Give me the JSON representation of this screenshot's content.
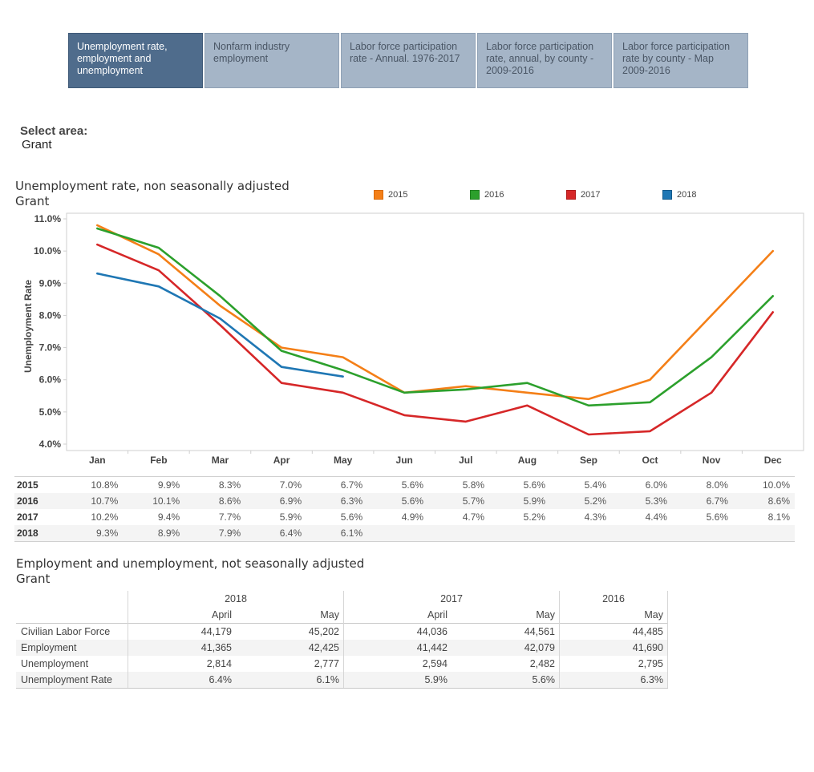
{
  "tabs": [
    {
      "label": "Unemployment rate, employment and unemployment",
      "active": true
    },
    {
      "label": "Nonfarm industry employment",
      "active": false
    },
    {
      "label": "Labor force participation rate - Annual. 1976-2017",
      "active": false
    },
    {
      "label": "Labor force participation rate, annual, by county - 2009-2016",
      "active": false
    },
    {
      "label": "Labor force participation rate by county - Map 2009-2016",
      "active": false
    }
  ],
  "area_selector": {
    "label": "Select area:",
    "value": "Grant"
  },
  "chart_section": {
    "title": "Unemployment rate, non seasonally adjusted",
    "subtitle": "Grant"
  },
  "chart_data": {
    "type": "line",
    "title": "Unemployment rate, non seasonally adjusted",
    "subtitle": "Grant",
    "xlabel": "",
    "ylabel": "Unemployment Rate",
    "categories": [
      "Jan",
      "Feb",
      "Mar",
      "Apr",
      "May",
      "Jun",
      "Jul",
      "Aug",
      "Sep",
      "Oct",
      "Nov",
      "Dec"
    ],
    "ylim": [
      4.0,
      11.0
    ],
    "yticks": [
      "11.0%",
      "10.0%",
      "9.0%",
      "8.0%",
      "7.0%",
      "6.0%",
      "5.0%",
      "4.0%"
    ],
    "ytick_values": [
      11,
      10,
      9,
      8,
      7,
      6,
      5,
      4
    ],
    "grid": false,
    "legend_position": "top",
    "series": [
      {
        "name": "2015",
        "color": "#f47f17",
        "values": [
          10.8,
          9.9,
          8.3,
          7.0,
          6.7,
          5.6,
          5.8,
          5.6,
          5.4,
          6.0,
          8.0,
          10.0
        ]
      },
      {
        "name": "2016",
        "color": "#2ca02c",
        "values": [
          10.7,
          10.1,
          8.6,
          6.9,
          6.3,
          5.6,
          5.7,
          5.9,
          5.2,
          5.3,
          6.7,
          8.6
        ]
      },
      {
        "name": "2017",
        "color": "#d62728",
        "values": [
          10.2,
          9.4,
          7.7,
          5.9,
          5.6,
          4.9,
          4.7,
          5.2,
          4.3,
          4.4,
          5.6,
          8.1
        ]
      },
      {
        "name": "2018",
        "color": "#1f77b4",
        "values": [
          9.3,
          8.9,
          7.9,
          6.4,
          6.1,
          null,
          null,
          null,
          null,
          null,
          null,
          null
        ]
      }
    ]
  },
  "rate_table": {
    "rows": [
      {
        "year": "2015",
        "values": [
          "10.8%",
          "9.9%",
          "8.3%",
          "7.0%",
          "6.7%",
          "5.6%",
          "5.8%",
          "5.6%",
          "5.4%",
          "6.0%",
          "8.0%",
          "10.0%"
        ]
      },
      {
        "year": "2016",
        "values": [
          "10.7%",
          "10.1%",
          "8.6%",
          "6.9%",
          "6.3%",
          "5.6%",
          "5.7%",
          "5.9%",
          "5.2%",
          "5.3%",
          "6.7%",
          "8.6%"
        ]
      },
      {
        "year": "2017",
        "values": [
          "10.2%",
          "9.4%",
          "7.7%",
          "5.9%",
          "5.6%",
          "4.9%",
          "4.7%",
          "5.2%",
          "4.3%",
          "4.4%",
          "5.6%",
          "8.1%"
        ]
      },
      {
        "year": "2018",
        "values": [
          "9.3%",
          "8.9%",
          "7.9%",
          "6.4%",
          "6.1%",
          "",
          "",
          "",
          "",
          "",
          "",
          ""
        ]
      }
    ]
  },
  "employment_section": {
    "title": "Employment and unemployment, not seasonally adjusted",
    "subtitle": "Grant",
    "years": [
      "2018",
      "2017",
      "2016"
    ],
    "months": [
      "April",
      "May",
      "April",
      "May",
      "May"
    ],
    "rows": [
      {
        "label": "Civilian Labor Force",
        "values": [
          "44,179",
          "45,202",
          "44,036",
          "44,561",
          "44,485"
        ]
      },
      {
        "label": "Employment",
        "values": [
          "41,365",
          "42,425",
          "41,442",
          "42,079",
          "41,690"
        ]
      },
      {
        "label": "Unemployment",
        "values": [
          "2,814",
          "2,777",
          "2,594",
          "2,482",
          "2,795"
        ]
      },
      {
        "label": "Unemployment Rate",
        "values": [
          "6.4%",
          "6.1%",
          "5.9%",
          "5.6%",
          "6.3%"
        ]
      }
    ]
  }
}
